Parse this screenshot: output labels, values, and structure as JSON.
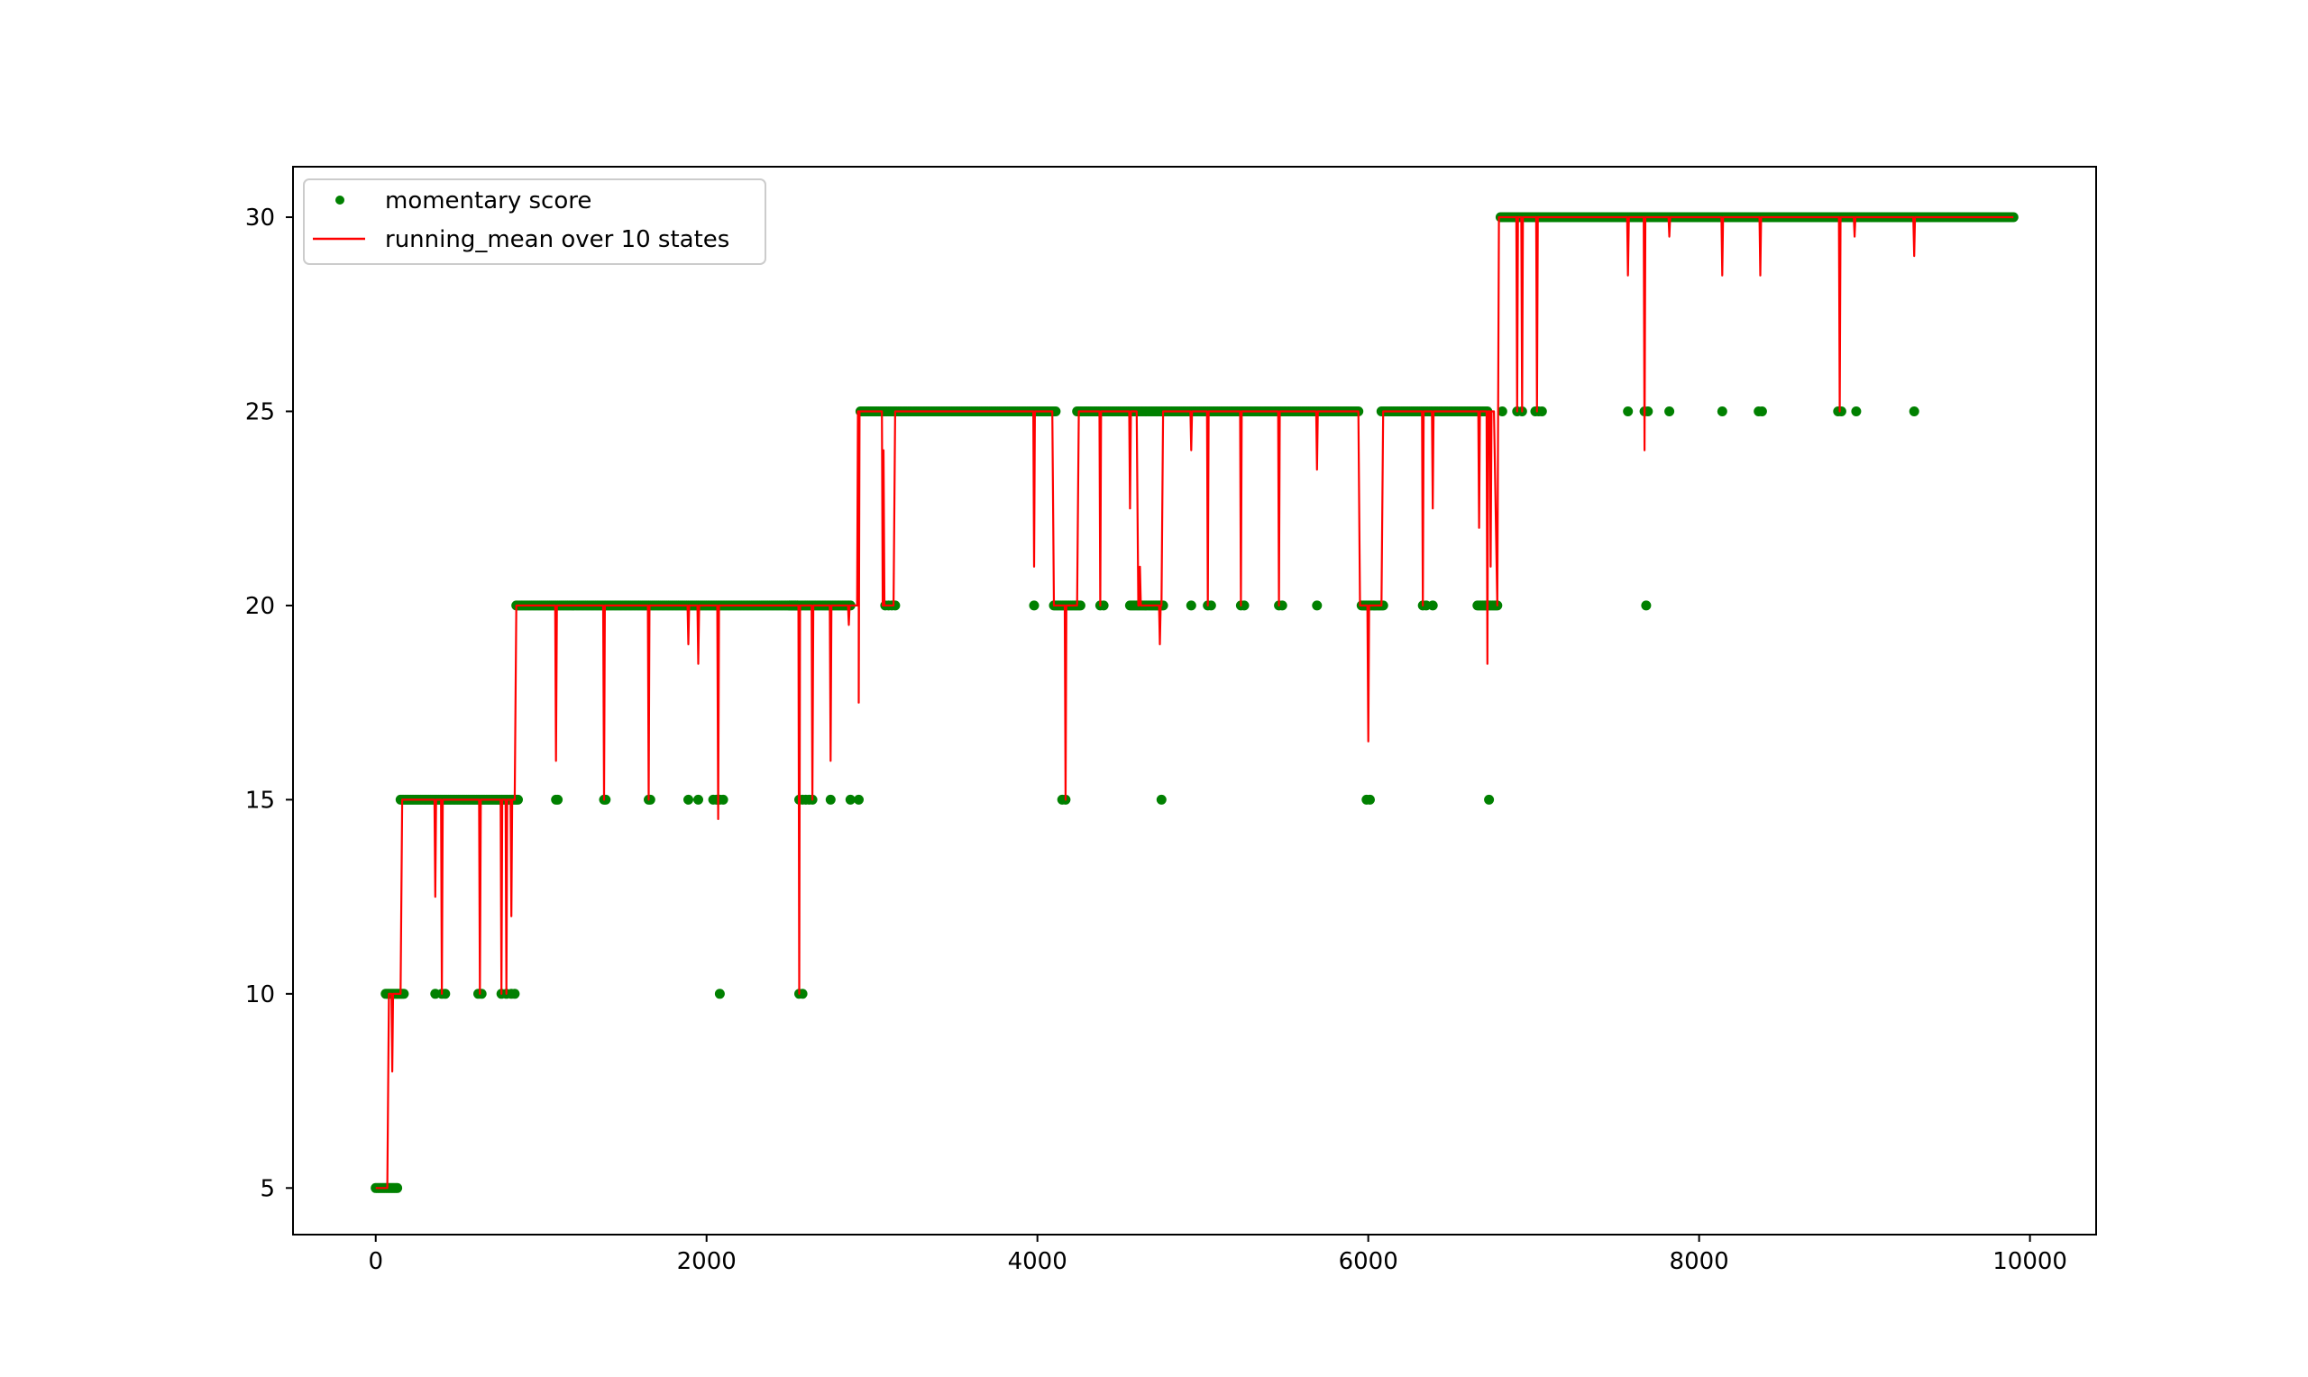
{
  "chart_data": {
    "type": "scatter",
    "title": "",
    "xlabel": "",
    "ylabel": "",
    "xlim": [
      -500,
      10400
    ],
    "ylim": [
      3.8,
      31.3
    ],
    "xticks": [
      0,
      2000,
      4000,
      6000,
      8000,
      10000
    ],
    "xtick_labels": [
      "0",
      "2000",
      "4000",
      "6000",
      "8000",
      "10000"
    ],
    "yticks": [
      5,
      10,
      15,
      20,
      25,
      30
    ],
    "ytick_labels": [
      "5",
      "10",
      "15",
      "20",
      "25",
      "30"
    ],
    "grid": false,
    "legend_position": "upper-left",
    "legend": [
      {
        "label": "momentary score",
        "marker": "dot",
        "color": "#008000"
      },
      {
        "label": "running_mean over 10 states",
        "marker": "line",
        "color": "#ff0000"
      }
    ],
    "series": [
      {
        "name": "momentary score",
        "kind": "scatter",
        "color": "#008000",
        "segments": [
          {
            "x_start": 0,
            "x_end": 130,
            "y": 5
          },
          {
            "x_start": 60,
            "x_end": 170,
            "y": 10
          },
          {
            "x_start": 150,
            "x_end": 860,
            "y": 15
          },
          {
            "x_start": 850,
            "x_end": 2870,
            "y": 20
          },
          {
            "x_start": 2930,
            "x_end": 4110,
            "y": 25
          },
          {
            "x_start": 4240,
            "x_end": 4770,
            "y": 25
          },
          {
            "x_start": 4780,
            "x_end": 5940,
            "y": 25
          },
          {
            "x_start": 6080,
            "x_end": 6720,
            "y": 25
          },
          {
            "x_start": 6800,
            "x_end": 9900,
            "y": 30
          },
          {
            "x_start": 2500,
            "x_end": 2550,
            "y": 20
          },
          {
            "x_start": 4100,
            "x_end": 4260,
            "y": 20
          },
          {
            "x_start": 4560,
            "x_end": 4760,
            "y": 20
          },
          {
            "x_start": 5960,
            "x_end": 6090,
            "y": 20
          },
          {
            "x_start": 6660,
            "x_end": 6780,
            "y": 20
          }
        ],
        "points": [
          [
            360,
            10
          ],
          [
            400,
            10
          ],
          [
            420,
            10
          ],
          [
            620,
            10
          ],
          [
            640,
            10
          ],
          [
            760,
            10
          ],
          [
            790,
            10
          ],
          [
            820,
            10
          ],
          [
            840,
            10
          ],
          [
            1090,
            15
          ],
          [
            1100,
            15
          ],
          [
            1380,
            15
          ],
          [
            1390,
            15
          ],
          [
            1650,
            15
          ],
          [
            1660,
            15
          ],
          [
            1890,
            15
          ],
          [
            1950,
            15
          ],
          [
            2040,
            15
          ],
          [
            2060,
            15
          ],
          [
            2080,
            15
          ],
          [
            2100,
            15
          ],
          [
            2080,
            10
          ],
          [
            2560,
            15
          ],
          [
            2580,
            15
          ],
          [
            2600,
            15
          ],
          [
            2620,
            15
          ],
          [
            2640,
            15
          ],
          [
            2560,
            10
          ],
          [
            2580,
            10
          ],
          [
            2750,
            15
          ],
          [
            2870,
            15
          ],
          [
            2920,
            15
          ],
          [
            3080,
            20
          ],
          [
            3100,
            20
          ],
          [
            3120,
            20
          ],
          [
            3140,
            20
          ],
          [
            3980,
            20
          ],
          [
            4150,
            15
          ],
          [
            4170,
            15
          ],
          [
            4380,
            20
          ],
          [
            4400,
            20
          ],
          [
            4750,
            15
          ],
          [
            4930,
            20
          ],
          [
            5030,
            20
          ],
          [
            5050,
            20
          ],
          [
            5230,
            20
          ],
          [
            5250,
            20
          ],
          [
            5460,
            20
          ],
          [
            5480,
            20
          ],
          [
            5690,
            20
          ],
          [
            5990,
            15
          ],
          [
            6010,
            15
          ],
          [
            6330,
            20
          ],
          [
            6350,
            20
          ],
          [
            6390,
            20
          ],
          [
            6730,
            15
          ],
          [
            6810,
            25
          ],
          [
            6900,
            25
          ],
          [
            6930,
            25
          ],
          [
            7010,
            25
          ],
          [
            7030,
            25
          ],
          [
            7050,
            25
          ],
          [
            7570,
            25
          ],
          [
            7670,
            25
          ],
          [
            7690,
            25
          ],
          [
            7680,
            20
          ],
          [
            7820,
            25
          ],
          [
            8140,
            25
          ],
          [
            8360,
            25
          ],
          [
            8380,
            25
          ],
          [
            8840,
            25
          ],
          [
            8860,
            25
          ],
          [
            8950,
            25
          ],
          [
            9300,
            25
          ]
        ]
      },
      {
        "name": "running_mean over 10 states",
        "kind": "line",
        "color": "#ff0000",
        "baseline": [
          [
            0,
            5
          ],
          [
            70,
            5
          ],
          [
            80,
            10
          ],
          [
            150,
            10
          ],
          [
            160,
            15
          ],
          [
            840,
            15
          ],
          [
            850,
            20
          ],
          [
            2910,
            20
          ],
          [
            2920,
            25
          ],
          [
            3060,
            25
          ],
          [
            3070,
            20
          ],
          [
            3130,
            20
          ],
          [
            3140,
            25
          ],
          [
            4090,
            25
          ],
          [
            4100,
            20
          ],
          [
            4240,
            20
          ],
          [
            4250,
            25
          ],
          [
            4600,
            25
          ],
          [
            4610,
            20
          ],
          [
            4750,
            20
          ],
          [
            4760,
            25
          ],
          [
            5940,
            25
          ],
          [
            5950,
            20
          ],
          [
            6080,
            20
          ],
          [
            6090,
            25
          ],
          [
            6760,
            25
          ],
          [
            6780,
            20
          ],
          [
            6790,
            30
          ],
          [
            9900,
            30
          ]
        ],
        "dips": [
          [
            100,
            8
          ],
          [
            360,
            12.5
          ],
          [
            400,
            10
          ],
          [
            630,
            10
          ],
          [
            760,
            10
          ],
          [
            790,
            10
          ],
          [
            820,
            12
          ],
          [
            1090,
            16
          ],
          [
            1380,
            15
          ],
          [
            1650,
            15
          ],
          [
            1890,
            19
          ],
          [
            1950,
            18.5
          ],
          [
            2070,
            14.5
          ],
          [
            2560,
            10
          ],
          [
            2640,
            15
          ],
          [
            2750,
            16
          ],
          [
            2860,
            19.5
          ],
          [
            2920,
            17.5
          ],
          [
            3070,
            24
          ],
          [
            3980,
            21
          ],
          [
            4170,
            15
          ],
          [
            4380,
            20
          ],
          [
            4560,
            22.5
          ],
          [
            4620,
            21
          ],
          [
            4740,
            19
          ],
          [
            4930,
            24
          ],
          [
            5030,
            20
          ],
          [
            5230,
            20
          ],
          [
            5460,
            20
          ],
          [
            5690,
            23.5
          ],
          [
            6000,
            16.5
          ],
          [
            6330,
            20
          ],
          [
            6390,
            22.5
          ],
          [
            6670,
            22
          ],
          [
            6720,
            18.5
          ],
          [
            6740,
            21
          ],
          [
            6900,
            25
          ],
          [
            6930,
            25
          ],
          [
            7020,
            25
          ],
          [
            7570,
            28.5
          ],
          [
            7670,
            24
          ],
          [
            7820,
            29.5
          ],
          [
            8140,
            28.5
          ],
          [
            8370,
            28.5
          ],
          [
            8850,
            25
          ],
          [
            8940,
            29.5
          ],
          [
            9300,
            29
          ]
        ]
      }
    ]
  }
}
